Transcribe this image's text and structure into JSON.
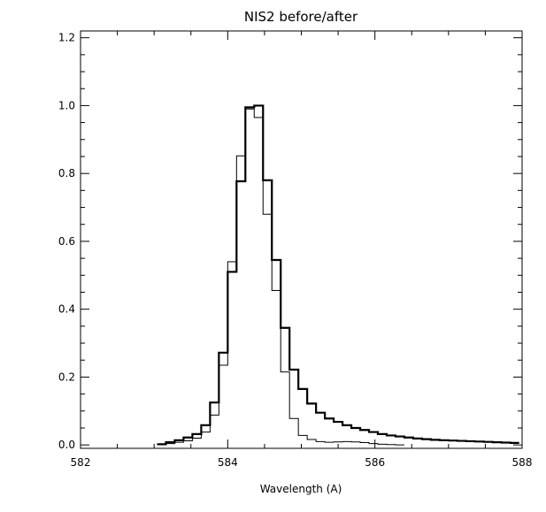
{
  "chart_data": {
    "type": "line",
    "title": "NIS2 before/after",
    "xlabel": "Wavelength (A)",
    "ylabel": "",
    "xlim": [
      582,
      588
    ],
    "ylim": [
      -0.01,
      1.22
    ],
    "x_ticks": [
      582,
      584,
      586,
      588
    ],
    "x_tick_labels": [
      "582",
      "584",
      "586",
      "588"
    ],
    "y_ticks": [
      0.0,
      0.2,
      0.4,
      0.6,
      0.8,
      1.0,
      1.2
    ],
    "y_tick_labels": [
      "0.0",
      "0.2",
      "0.4",
      "0.6",
      "0.8",
      "1.0",
      "1.2"
    ],
    "grid": false,
    "legend": "none",
    "series": [
      {
        "style": "thick",
        "color": "#000000",
        "step": "histogram",
        "x": [
          583.1,
          583.22,
          583.34,
          583.46,
          583.58,
          583.7,
          583.82,
          583.94,
          584.06,
          584.18,
          584.3,
          584.42,
          584.54,
          584.66,
          584.78,
          584.9,
          585.02,
          585.14,
          585.26,
          585.38,
          585.5,
          585.62,
          585.74,
          585.86,
          585.98,
          586.1,
          586.22,
          586.34,
          586.46,
          586.58,
          586.7,
          586.82,
          586.94,
          587.06,
          587.18,
          587.3,
          587.42,
          587.54,
          587.66,
          587.78,
          587.9
        ],
        "y": [
          0.002,
          0.008,
          0.014,
          0.022,
          0.032,
          0.058,
          0.125,
          0.272,
          0.51,
          0.777,
          0.995,
          1.0,
          0.78,
          0.545,
          0.345,
          0.222,
          0.165,
          0.122,
          0.095,
          0.078,
          0.068,
          0.058,
          0.05,
          0.044,
          0.038,
          0.032,
          0.028,
          0.025,
          0.022,
          0.019,
          0.017,
          0.015,
          0.014,
          0.013,
          0.012,
          0.011,
          0.01,
          0.009,
          0.008,
          0.007,
          0.006
        ]
      },
      {
        "style": "thin",
        "color": "#000000",
        "step": "histogram",
        "x": [
          583.1,
          583.22,
          583.34,
          583.46,
          583.58,
          583.7,
          583.82,
          583.94,
          584.06,
          584.18,
          584.3,
          584.42,
          584.54,
          584.66,
          584.78,
          584.9,
          585.02,
          585.14,
          585.26,
          585.38,
          585.5,
          585.62,
          585.74,
          585.86,
          585.98,
          586.1,
          586.22,
          586.34
        ],
        "y": [
          0.001,
          0.004,
          0.008,
          0.012,
          0.02,
          0.038,
          0.088,
          0.235,
          0.54,
          0.852,
          0.99,
          0.965,
          0.68,
          0.455,
          0.215,
          0.078,
          0.028,
          0.016,
          0.01,
          0.008,
          0.009,
          0.01,
          0.009,
          0.007,
          0.004,
          0.002,
          0.001,
          0.0
        ]
      }
    ]
  }
}
